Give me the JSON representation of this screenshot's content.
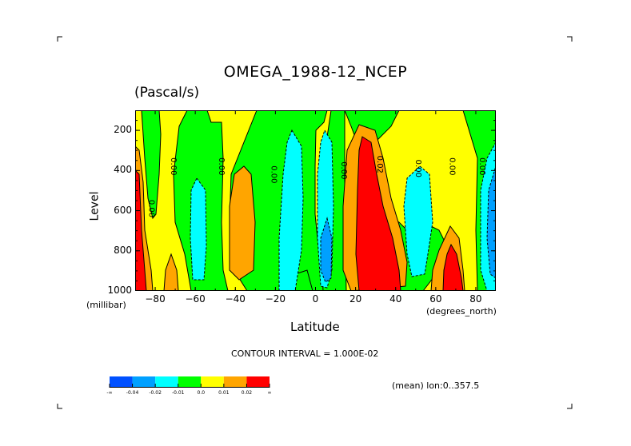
{
  "chart_data": {
    "type": "heatmap",
    "title": "OMEGA_1988-12_NCEP",
    "units": "(Pascal/s)",
    "xlabel": "Latitude",
    "x_units": "(degrees_north)",
    "ylabel": "Level",
    "y_units": "(millibar)",
    "xlim": [
      -90,
      90
    ],
    "ylim": [
      1000,
      100
    ],
    "x_ticks": [
      "-80",
      "-60",
      "-40",
      "-20",
      "0",
      "20",
      "40",
      "60",
      "80"
    ],
    "y_ticks": [
      "200",
      "400",
      "600",
      "800",
      "1000"
    ],
    "contour_interval_text": "CONTOUR INTERVAL = 1.000E-02",
    "averaging_text": "(mean) lon:0..357.5",
    "contour_labels": [
      "0.00",
      "0.00",
      "0.00",
      "0.00",
      "0.00",
      "0.02",
      "0.00",
      "0.00",
      "0.00"
    ],
    "colorbar": {
      "labels": [
        "-∞",
        "-0.04",
        "-0.02",
        "-0.01",
        "0.0",
        "0.01",
        "0.02",
        "∞"
      ],
      "colors": [
        "#0050ff",
        "#00a0ff",
        "#00ffff",
        "#00ff00",
        "#ffff00",
        "#ffa500",
        "#ff0000"
      ]
    }
  }
}
